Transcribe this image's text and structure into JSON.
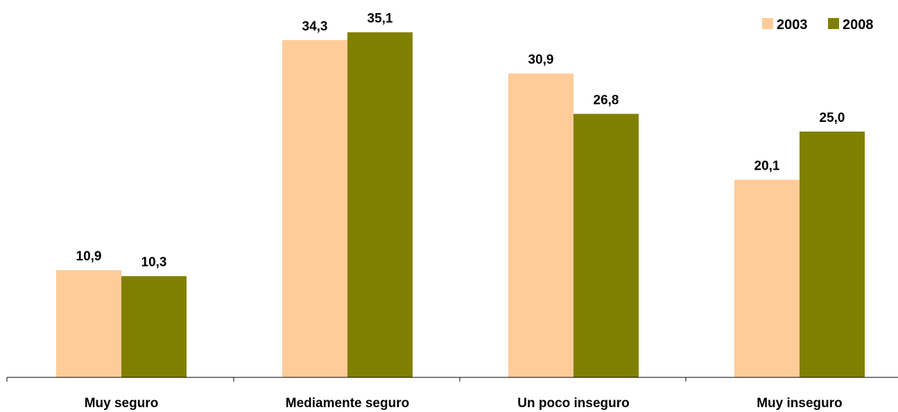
{
  "chart_data": {
    "type": "bar",
    "categories": [
      "Muy seguro",
      "Mediamente seguro",
      "Un poco inseguro",
      "Muy inseguro"
    ],
    "series": [
      {
        "name": "2003",
        "values": [
          10.9,
          34.3,
          30.9,
          20.1
        ],
        "labels": [
          "10,9",
          "34,3",
          "30,9",
          "20,1"
        ],
        "color": "#FFCC99"
      },
      {
        "name": "2008",
        "values": [
          10.3,
          35.1,
          26.8,
          25.0
        ],
        "labels": [
          "10,3",
          "35,1",
          "26,8",
          "25,0"
        ],
        "color": "#808000"
      }
    ],
    "title": "",
    "xlabel": "",
    "ylabel": "",
    "ylim": [
      0,
      36
    ],
    "grid": false,
    "legend": "top-right"
  }
}
